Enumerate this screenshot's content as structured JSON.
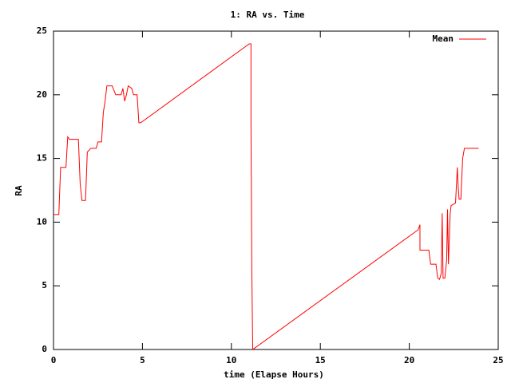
{
  "chart_data": {
    "type": "line",
    "title": "1: RA vs. Time",
    "xlabel": "time (Elapse Hours)",
    "ylabel": "RA",
    "x": [
      0,
      0.3,
      0.4,
      0.7,
      0.8,
      0.9,
      1.4,
      1.5,
      1.6,
      1.8,
      1.9,
      2.1,
      2.4,
      2.5,
      2.7,
      2.8,
      2.9,
      3.0,
      3.3,
      3.5,
      3.8,
      3.9,
      4.0,
      4.1,
      4.2,
      4.4,
      4.5,
      4.7,
      4.8,
      4.9,
      11.0,
      11.1,
      11.1,
      11.15,
      11.2,
      20.5,
      20.6,
      20.6,
      21.1,
      21.2,
      21.5,
      21.6,
      21.7,
      21.8,
      21.85,
      21.9,
      22.0,
      22.1,
      22.15,
      22.2,
      22.3,
      22.35,
      22.6,
      22.7,
      22.75,
      22.8,
      22.9,
      23.0,
      23.1,
      23.9
    ],
    "series": [
      {
        "name": "Mean",
        "color": "#ff0000",
        "values": [
          10.6,
          10.6,
          14.3,
          14.3,
          16.7,
          16.5,
          16.5,
          13,
          11.7,
          11.7,
          15.5,
          15.8,
          15.8,
          16.3,
          16.3,
          18.6,
          19.5,
          20.7,
          20.7,
          20,
          20,
          20.5,
          19.5,
          20,
          20.7,
          20.5,
          20,
          20,
          17.8,
          17.8,
          24,
          24,
          18,
          6,
          0,
          9.4,
          9.8,
          7.8,
          7.8,
          6.7,
          6.7,
          5.6,
          5.5,
          6,
          10.7,
          5.6,
          5.6,
          7,
          11,
          6.7,
          10.7,
          11.3,
          11.5,
          14.3,
          12.8,
          11.8,
          11.8,
          15,
          15.8,
          15.8
        ]
      }
    ],
    "xlim": [
      0,
      25
    ],
    "ylim": [
      0,
      25
    ],
    "xticks": [
      0,
      5,
      10,
      15,
      20,
      25
    ],
    "yticks": [
      0,
      5,
      10,
      15,
      20,
      25
    ],
    "legend": "upper right",
    "grid": false
  }
}
